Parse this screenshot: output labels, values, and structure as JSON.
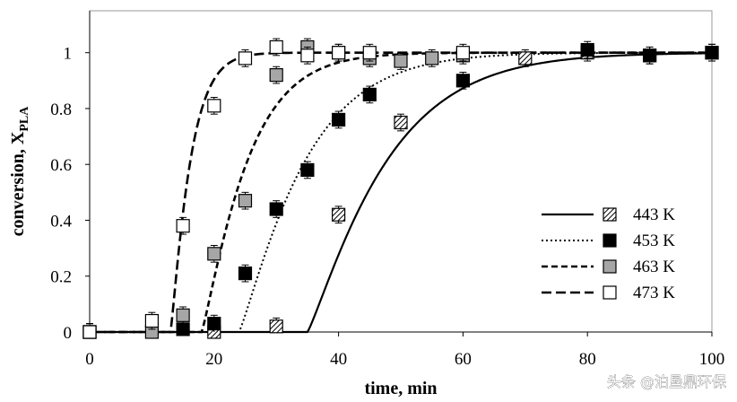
{
  "chart_data": {
    "type": "scatter",
    "title": "",
    "xlabel": "time, min",
    "ylabel_main": "conversion, X",
    "ylabel_sub": "PLA",
    "xlim": [
      0,
      100
    ],
    "ylim": [
      0,
      1.15
    ],
    "xticks": [
      0,
      20,
      40,
      60,
      80,
      100
    ],
    "yticks": [
      0,
      0.2,
      0.4,
      0.6,
      0.8,
      1
    ],
    "ytick_labels": [
      "0",
      "0.2",
      "0.4",
      "0.6",
      "0.8",
      "1"
    ],
    "legend_position": "bottom-right",
    "error_bar": 0.03,
    "series": [
      {
        "name": "443 K",
        "marker": "hatched-square",
        "line_style": "solid",
        "fit": {
          "t0": 35,
          "k": 0.075,
          "n": 1.15
        },
        "x": [
          0,
          20,
          30,
          40,
          50,
          70,
          80,
          90,
          100
        ],
        "y": [
          0,
          0,
          0.02,
          0.42,
          0.75,
          0.98,
          1.0,
          0.99,
          1.0
        ]
      },
      {
        "name": "453 K",
        "marker": "filled-black-square",
        "line_style": "dotted",
        "fit": {
          "t0": 24,
          "k": 0.09,
          "n": 1.15
        },
        "x": [
          0,
          15,
          20,
          25,
          30,
          35,
          40,
          45,
          60,
          80,
          90,
          100
        ],
        "y": [
          0,
          0.01,
          0.03,
          0.21,
          0.44,
          0.58,
          0.76,
          0.85,
          0.9,
          1.01,
          0.99,
          1.0
        ]
      },
      {
        "name": "463 K",
        "marker": "filled-gray-square",
        "line_style": "short-dash",
        "fit": {
          "t0": 18,
          "k": 0.13,
          "n": 1.15
        },
        "x": [
          0,
          10,
          15,
          20,
          25,
          30,
          35,
          40,
          45,
          50,
          55,
          60
        ],
        "y": [
          0,
          0,
          0.06,
          0.28,
          0.47,
          0.92,
          1.02,
          1.0,
          0.98,
          0.97,
          0.98,
          0.99
        ]
      },
      {
        "name": "473 K",
        "marker": "open-square",
        "line_style": "long-dash",
        "fit": {
          "t0": 13,
          "k": 0.3,
          "n": 1.15
        },
        "x": [
          0,
          10,
          15,
          20,
          25,
          30,
          35,
          40,
          45,
          60
        ],
        "y": [
          0,
          0.04,
          0.38,
          0.81,
          0.98,
          1.02,
          0.99,
          1.0,
          1.0,
          1.0
        ]
      }
    ]
  },
  "watermark": "头条 @泊垦鼎环保"
}
